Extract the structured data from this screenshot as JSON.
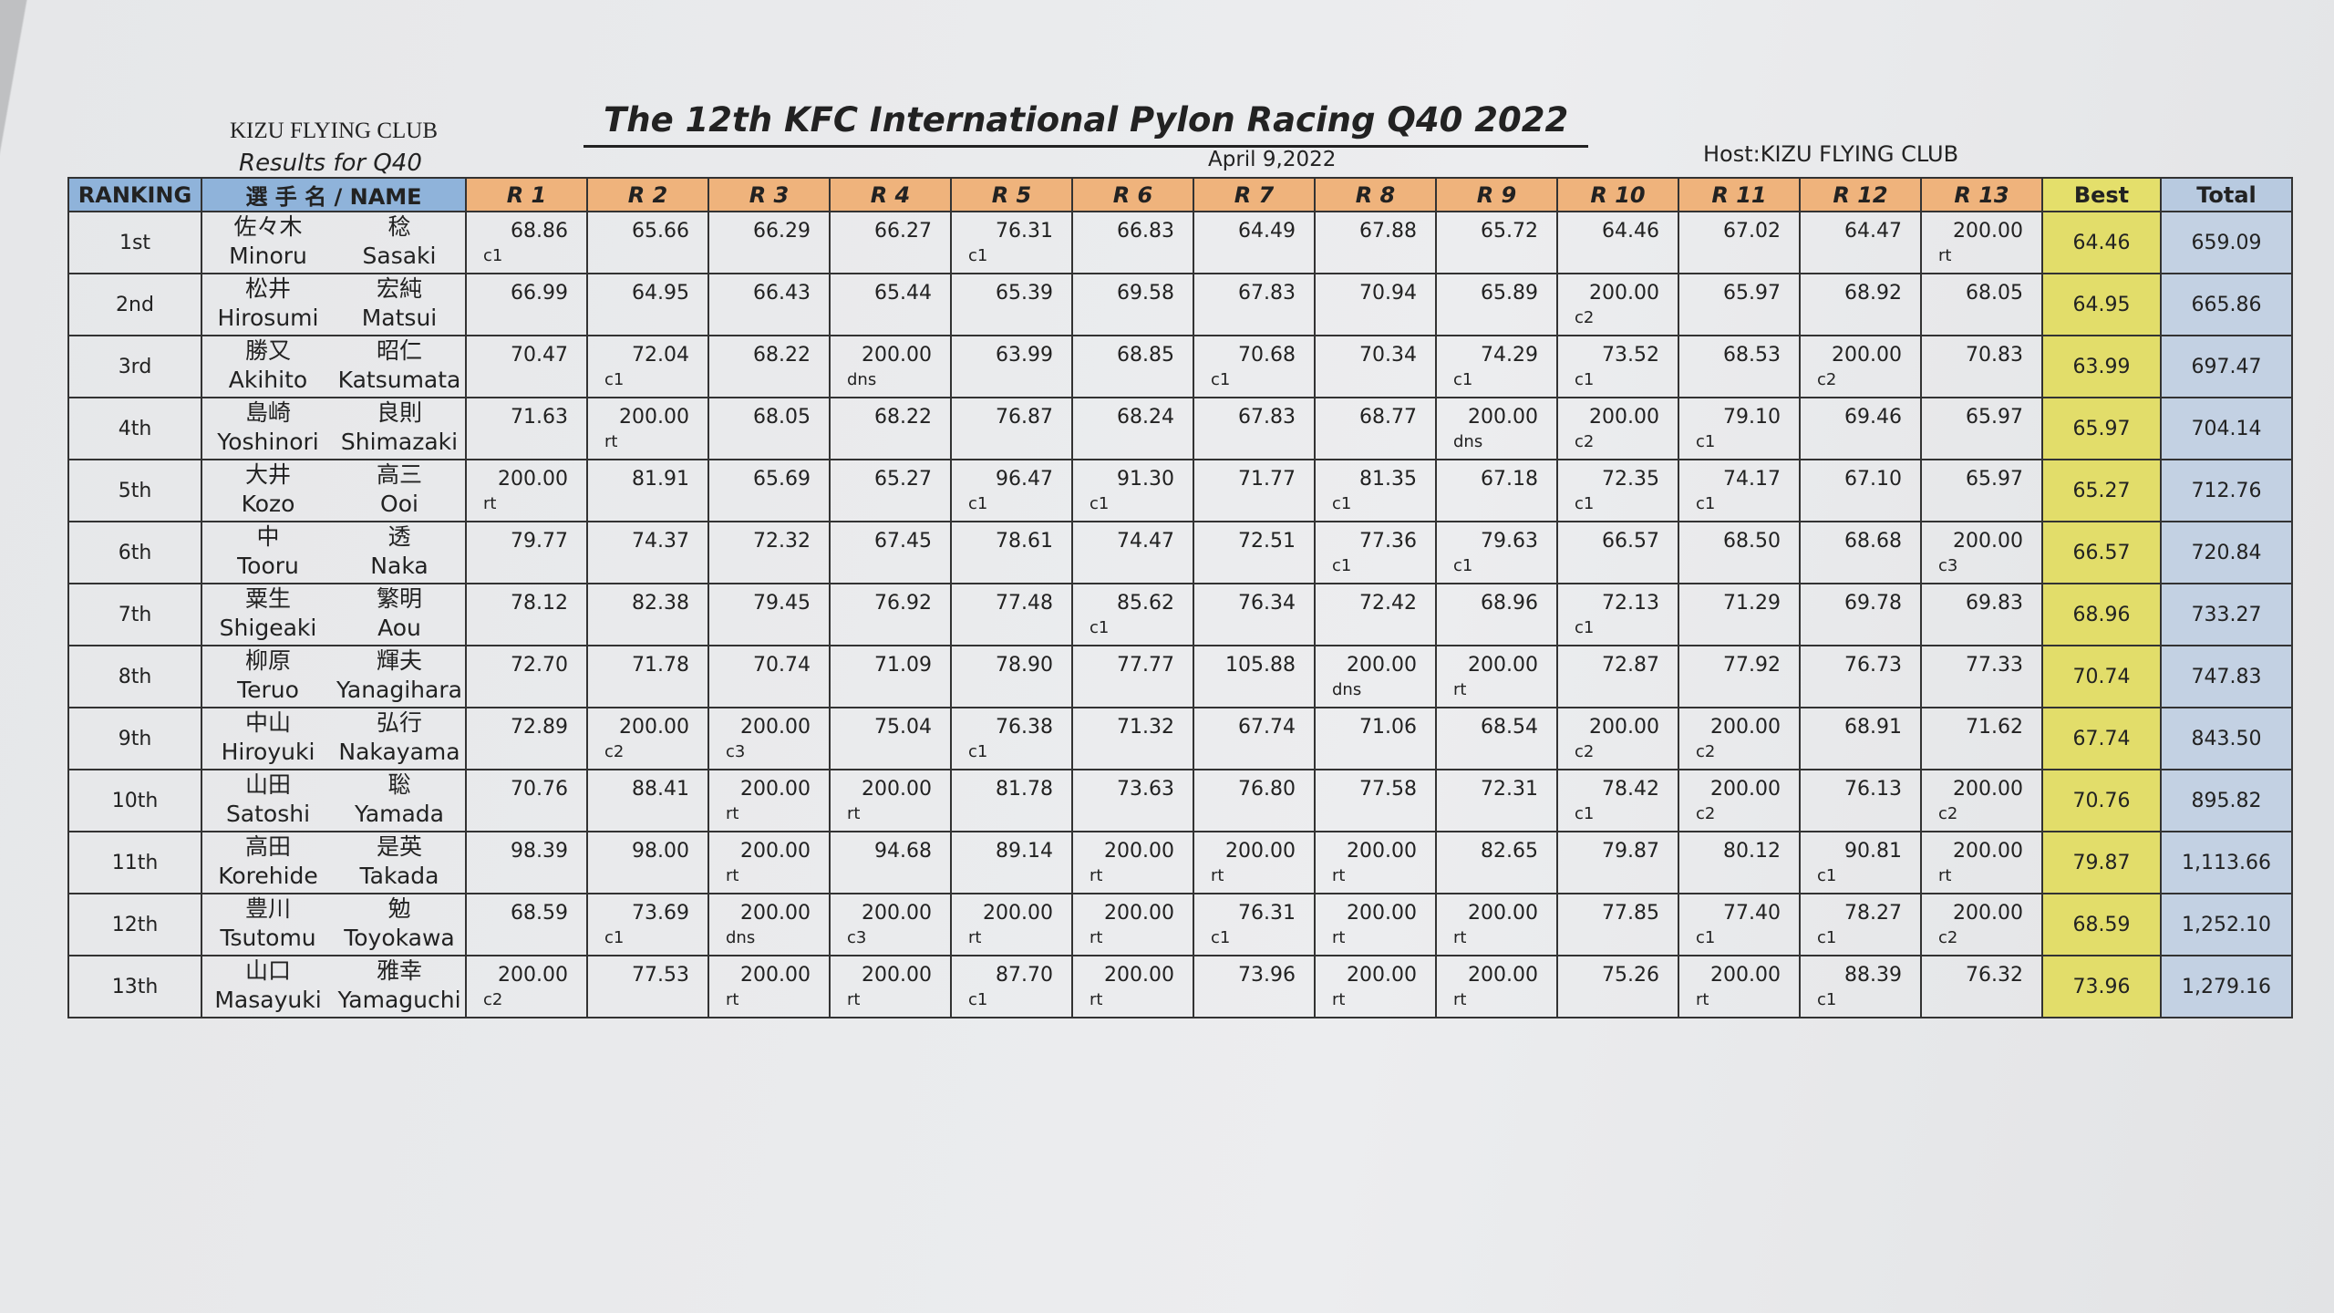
{
  "header": {
    "club": "KIZU FLYING CLUB",
    "subtitle": "Results for Q40",
    "title": "The 12th KFC International Pylon Racing Q40 2022",
    "date": "April 9,2022",
    "host": "Host:KIZU FLYING CLUB"
  },
  "table": {
    "columns": [
      "RANKING",
      "選 手 名 / NAME",
      "R 1",
      "R 2",
      "R 3",
      "R 4",
      "R 5",
      "R 6",
      "R 7",
      "R 8",
      "R 9",
      "R 10",
      "R 11",
      "R 12",
      "R 13",
      "Best",
      "Total"
    ],
    "rows": [
      {
        "rank": "1st",
        "jp": [
          "佐々木",
          "稔"
        ],
        "en": [
          "Minoru",
          "Sasaki"
        ],
        "races": [
          [
            "68.86",
            "c1"
          ],
          [
            "65.66"
          ],
          [
            "66.29"
          ],
          [
            "66.27"
          ],
          [
            "76.31",
            "c1"
          ],
          [
            "66.83"
          ],
          [
            "64.49"
          ],
          [
            "67.88"
          ],
          [
            "65.72"
          ],
          [
            "64.46"
          ],
          [
            "67.02"
          ],
          [
            "64.47"
          ],
          [
            "200.00",
            "rt"
          ]
        ],
        "best": "64.46",
        "total": "659.09"
      },
      {
        "rank": "2nd",
        "jp": [
          "松井",
          "宏純"
        ],
        "en": [
          "Hirosumi",
          "Matsui"
        ],
        "races": [
          [
            "66.99"
          ],
          [
            "64.95"
          ],
          [
            "66.43"
          ],
          [
            "65.44"
          ],
          [
            "65.39"
          ],
          [
            "69.58"
          ],
          [
            "67.83"
          ],
          [
            "70.94"
          ],
          [
            "65.89"
          ],
          [
            "200.00",
            "c2"
          ],
          [
            "65.97"
          ],
          [
            "68.92"
          ],
          [
            "68.05"
          ]
        ],
        "best": "64.95",
        "total": "665.86"
      },
      {
        "rank": "3rd",
        "jp": [
          "勝又",
          "昭仁"
        ],
        "en": [
          "Akihito",
          "Katsumata"
        ],
        "races": [
          [
            "70.47"
          ],
          [
            "72.04",
            "c1"
          ],
          [
            "68.22"
          ],
          [
            "200.00",
            "dns"
          ],
          [
            "63.99"
          ],
          [
            "68.85"
          ],
          [
            "70.68",
            "c1"
          ],
          [
            "70.34"
          ],
          [
            "74.29",
            "c1"
          ],
          [
            "73.52",
            "c1"
          ],
          [
            "68.53"
          ],
          [
            "200.00",
            "c2"
          ],
          [
            "70.83"
          ]
        ],
        "best": "63.99",
        "total": "697.47"
      },
      {
        "rank": "4th",
        "jp": [
          "島崎",
          "良則"
        ],
        "en": [
          "Yoshinori",
          "Shimazaki"
        ],
        "races": [
          [
            "71.63"
          ],
          [
            "200.00",
            "rt"
          ],
          [
            "68.05"
          ],
          [
            "68.22"
          ],
          [
            "76.87"
          ],
          [
            "68.24"
          ],
          [
            "67.83"
          ],
          [
            "68.77"
          ],
          [
            "200.00",
            "dns"
          ],
          [
            "200.00",
            "c2"
          ],
          [
            "79.10",
            "c1"
          ],
          [
            "69.46"
          ],
          [
            "65.97"
          ]
        ],
        "best": "65.97",
        "total": "704.14"
      },
      {
        "rank": "5th",
        "jp": [
          "大井",
          "高三"
        ],
        "en": [
          "Kozo",
          "Ooi"
        ],
        "races": [
          [
            "200.00",
            "rt"
          ],
          [
            "81.91"
          ],
          [
            "65.69"
          ],
          [
            "65.27"
          ],
          [
            "96.47",
            "c1"
          ],
          [
            "91.30",
            "c1"
          ],
          [
            "71.77"
          ],
          [
            "81.35",
            "c1"
          ],
          [
            "67.18"
          ],
          [
            "72.35",
            "c1"
          ],
          [
            "74.17",
            "c1"
          ],
          [
            "67.10"
          ],
          [
            "65.97"
          ]
        ],
        "best": "65.27",
        "total": "712.76"
      },
      {
        "rank": "6th",
        "jp": [
          "中",
          "透"
        ],
        "en": [
          "Tooru",
          "Naka"
        ],
        "races": [
          [
            "79.77"
          ],
          [
            "74.37"
          ],
          [
            "72.32"
          ],
          [
            "67.45"
          ],
          [
            "78.61"
          ],
          [
            "74.47"
          ],
          [
            "72.51"
          ],
          [
            "77.36",
            "c1"
          ],
          [
            "79.63",
            "c1"
          ],
          [
            "66.57"
          ],
          [
            "68.50"
          ],
          [
            "68.68"
          ],
          [
            "200.00",
            "c3"
          ]
        ],
        "best": "66.57",
        "total": "720.84"
      },
      {
        "rank": "7th",
        "jp": [
          "粟生",
          "繁明"
        ],
        "en": [
          "Shigeaki",
          "Aou"
        ],
        "races": [
          [
            "78.12"
          ],
          [
            "82.38"
          ],
          [
            "79.45"
          ],
          [
            "76.92"
          ],
          [
            "77.48"
          ],
          [
            "85.62",
            "c1"
          ],
          [
            "76.34"
          ],
          [
            "72.42"
          ],
          [
            "68.96"
          ],
          [
            "72.13",
            "c1"
          ],
          [
            "71.29"
          ],
          [
            "69.78"
          ],
          [
            "69.83"
          ]
        ],
        "best": "68.96",
        "total": "733.27"
      },
      {
        "rank": "8th",
        "jp": [
          "柳原",
          "輝夫"
        ],
        "en": [
          "Teruo",
          "Yanagihara"
        ],
        "races": [
          [
            "72.70"
          ],
          [
            "71.78"
          ],
          [
            "70.74"
          ],
          [
            "71.09"
          ],
          [
            "78.90"
          ],
          [
            "77.77"
          ],
          [
            "105.88"
          ],
          [
            "200.00",
            "dns"
          ],
          [
            "200.00",
            "rt"
          ],
          [
            "72.87"
          ],
          [
            "77.92"
          ],
          [
            "76.73"
          ],
          [
            "77.33"
          ]
        ],
        "best": "70.74",
        "total": "747.83"
      },
      {
        "rank": "9th",
        "jp": [
          "中山",
          "弘行"
        ],
        "en": [
          "Hiroyuki",
          "Nakayama"
        ],
        "races": [
          [
            "72.89"
          ],
          [
            "200.00",
            "c2"
          ],
          [
            "200.00",
            "c3"
          ],
          [
            "75.04"
          ],
          [
            "76.38",
            "c1"
          ],
          [
            "71.32"
          ],
          [
            "67.74"
          ],
          [
            "71.06"
          ],
          [
            "68.54"
          ],
          [
            "200.00",
            "c2"
          ],
          [
            "200.00",
            "c2"
          ],
          [
            "68.91"
          ],
          [
            "71.62"
          ]
        ],
        "best": "67.74",
        "total": "843.50"
      },
      {
        "rank": "10th",
        "jp": [
          "山田",
          "聡"
        ],
        "en": [
          "Satoshi",
          "Yamada"
        ],
        "races": [
          [
            "70.76"
          ],
          [
            "88.41"
          ],
          [
            "200.00",
            "rt"
          ],
          [
            "200.00",
            "rt"
          ],
          [
            "81.78"
          ],
          [
            "73.63"
          ],
          [
            "76.80"
          ],
          [
            "77.58"
          ],
          [
            "72.31"
          ],
          [
            "78.42",
            "c1"
          ],
          [
            "200.00",
            "c2"
          ],
          [
            "76.13"
          ],
          [
            "200.00",
            "c2"
          ]
        ],
        "best": "70.76",
        "total": "895.82"
      },
      {
        "rank": "11th",
        "jp": [
          "高田",
          "是英"
        ],
        "en": [
          "Korehide",
          "Takada"
        ],
        "races": [
          [
            "98.39"
          ],
          [
            "98.00"
          ],
          [
            "200.00",
            "rt"
          ],
          [
            "94.68"
          ],
          [
            "89.14"
          ],
          [
            "200.00",
            "rt"
          ],
          [
            "200.00",
            "rt"
          ],
          [
            "200.00",
            "rt"
          ],
          [
            "82.65"
          ],
          [
            "79.87"
          ],
          [
            "80.12"
          ],
          [
            "90.81",
            "c1"
          ],
          [
            "200.00",
            "rt"
          ]
        ],
        "best": "79.87",
        "total": "1,113.66"
      },
      {
        "rank": "12th",
        "jp": [
          "豊川",
          "勉"
        ],
        "en": [
          "Tsutomu",
          "Toyokawa"
        ],
        "races": [
          [
            "68.59"
          ],
          [
            "73.69",
            "c1"
          ],
          [
            "200.00",
            "dns"
          ],
          [
            "200.00",
            "c3"
          ],
          [
            "200.00",
            "rt"
          ],
          [
            "200.00",
            "rt"
          ],
          [
            "76.31",
            "c1"
          ],
          [
            "200.00",
            "rt"
          ],
          [
            "200.00",
            "rt"
          ],
          [
            "77.85"
          ],
          [
            "77.40",
            "c1"
          ],
          [
            "78.27",
            "c1"
          ],
          [
            "200.00",
            "c2"
          ]
        ],
        "best": "68.59",
        "total": "1,252.10"
      },
      {
        "rank": "13th",
        "jp": [
          "山口",
          "雅幸"
        ],
        "en": [
          "Masayuki",
          "Yamaguchi"
        ],
        "races": [
          [
            "200.00",
            "c2"
          ],
          [
            "77.53"
          ],
          [
            "200.00",
            "rt"
          ],
          [
            "200.00",
            "rt"
          ],
          [
            "87.70",
            "c1"
          ],
          [
            "200.00",
            "rt"
          ],
          [
            "73.96"
          ],
          [
            "200.00",
            "rt"
          ],
          [
            "200.00",
            "rt"
          ],
          [
            "75.26"
          ],
          [
            "200.00",
            "rt"
          ],
          [
            "88.39",
            "c1"
          ],
          [
            "76.32"
          ]
        ],
        "best": "73.96",
        "total": "1,279.16"
      }
    ]
  }
}
